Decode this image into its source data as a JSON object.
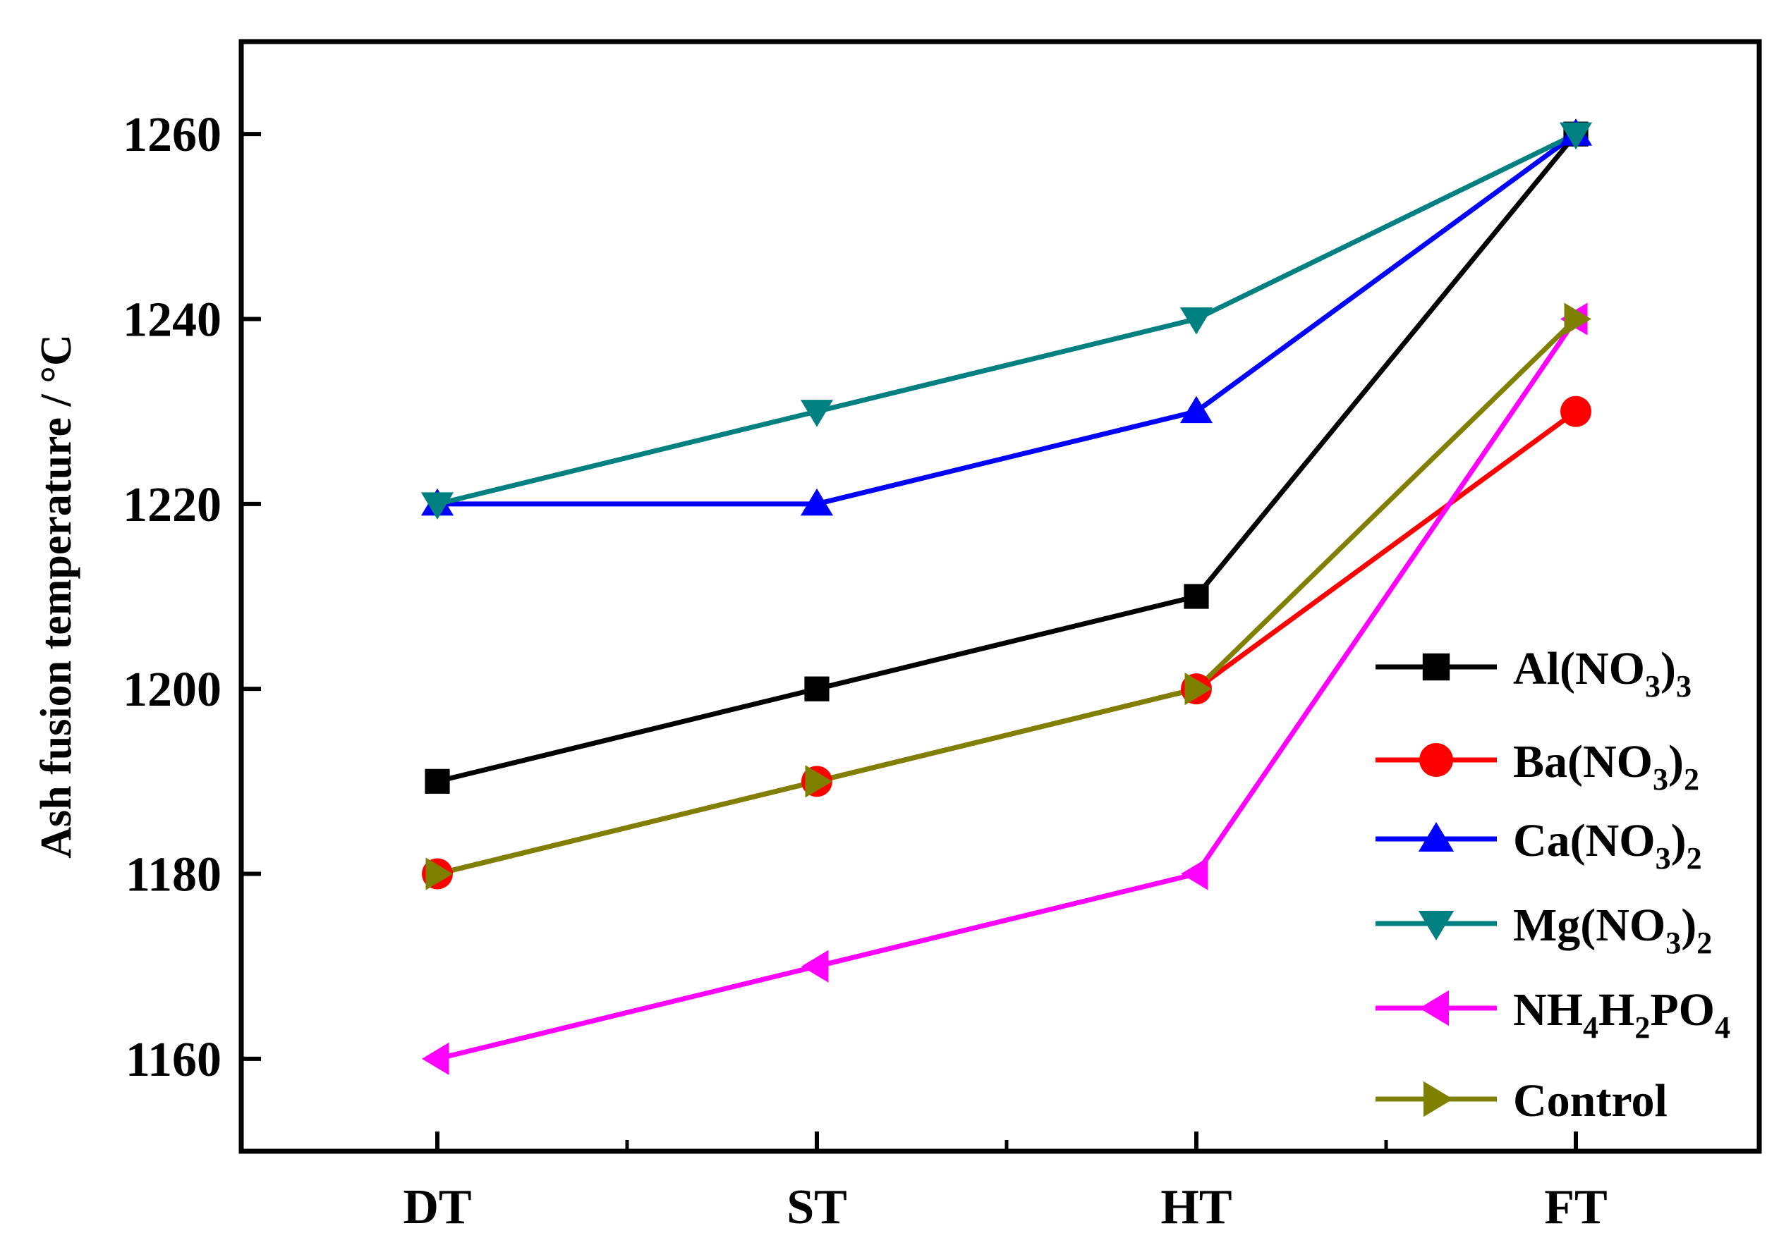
{
  "chart_data": {
    "type": "line",
    "title": "",
    "xlabel": "",
    "ylabel": "Ash fusion temperature / °C",
    "categories": [
      "DT",
      "ST",
      "HT",
      "FT"
    ],
    "ylim": [
      1150,
      1270
    ],
    "yticks": [
      1160,
      1180,
      1200,
      1220,
      1240,
      1260
    ],
    "ytick_labels": [
      "1160",
      "1180",
      "1200",
      "1220",
      "1240",
      "1260"
    ],
    "legend_position": "right",
    "series": [
      {
        "name": "Al(NO3)3",
        "label_parts": [
          [
            "Al(NO",
            ""
          ],
          [
            "3",
            "sub"
          ],
          [
            ")",
            ""
          ],
          [
            "3",
            "sub"
          ]
        ],
        "color": "#000000",
        "marker": "square",
        "values": [
          1190,
          1200,
          1210,
          1260
        ]
      },
      {
        "name": "Ba(NO3)2",
        "label_parts": [
          [
            "Ba(NO",
            ""
          ],
          [
            "3",
            "sub"
          ],
          [
            ")",
            ""
          ],
          [
            "2",
            "sub"
          ]
        ],
        "color": "#ff0000",
        "marker": "circle",
        "values": [
          1180,
          1190,
          1200,
          1230
        ]
      },
      {
        "name": "Ca(NO3)2",
        "label_parts": [
          [
            "Ca(NO",
            ""
          ],
          [
            "3",
            "sub"
          ],
          [
            ")",
            ""
          ],
          [
            "2",
            "sub"
          ]
        ],
        "color": "#0000ff",
        "marker": "triangle-up",
        "values": [
          1220,
          1220,
          1230,
          1260
        ]
      },
      {
        "name": "Mg(NO3)2",
        "label_parts": [
          [
            "Mg(NO",
            ""
          ],
          [
            "3",
            "sub"
          ],
          [
            ")",
            ""
          ],
          [
            "2",
            "sub"
          ]
        ],
        "color": "#008080",
        "marker": "triangle-down",
        "values": [
          1220,
          1230,
          1240,
          1260
        ]
      },
      {
        "name": "NH4H2PO4",
        "label_parts": [
          [
            "NH",
            ""
          ],
          [
            "4",
            "sub"
          ],
          [
            "H",
            ""
          ],
          [
            "2",
            "sub"
          ],
          [
            "PO",
            ""
          ],
          [
            "4",
            "sub"
          ]
        ],
        "color": "#ff00ff",
        "marker": "triangle-left",
        "values": [
          1160,
          1170,
          1180,
          1240
        ]
      },
      {
        "name": "Control",
        "label_parts": [
          [
            "Control",
            ""
          ]
        ],
        "color": "#808000",
        "marker": "triangle-right",
        "values": [
          1180,
          1190,
          1200,
          1240
        ]
      }
    ]
  }
}
